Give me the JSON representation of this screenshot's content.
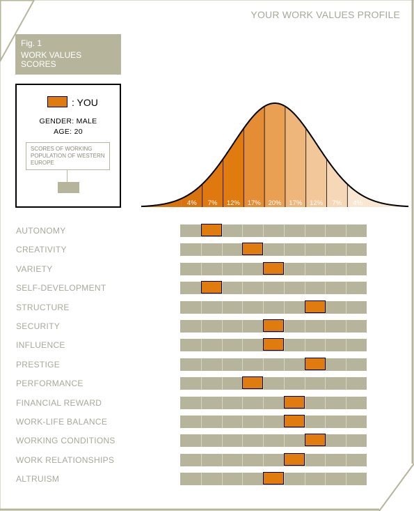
{
  "header": {
    "title": "YOUR WORK VALUES PROFILE"
  },
  "figure": {
    "number": "Fig. 1",
    "title": "WORK VALUES SCORES"
  },
  "legend": {
    "you_label": ": YOU",
    "gender": "GENDER: MALE",
    "age": "AGE: 20",
    "population_label": "SCORES OF WORKING POPULATION OF WESTERN EUROPE"
  },
  "colors": {
    "you": "#e07b10",
    "population": "#b6b59c",
    "label_text": "#a8a89a",
    "frame": "#b6b59c"
  },
  "chart_data": {
    "type": "bar",
    "distribution": {
      "type": "area",
      "segments": [
        "4%",
        "7%",
        "12%",
        "17%",
        "20%",
        "17%",
        "12%",
        "7%",
        "4%"
      ],
      "values": [
        4,
        7,
        12,
        17,
        20,
        17,
        12,
        7,
        4
      ]
    },
    "scale_positions": 9,
    "categories": [
      "AUTONOMY",
      "CREATIVITY",
      "VARIETY",
      "SELF-DEVELOPMENT",
      "STRUCTURE",
      "SECURITY",
      "INFLUENCE",
      "PRESTIGE",
      "PERFORMANCE",
      "FINANCIAL REWARD",
      "WORK-LIFE BALANCE",
      "WORKING CONDITIONS",
      "WORK RELATIONSHIPS",
      "ALTRUISM"
    ],
    "series": [
      {
        "name": "YOU",
        "values": [
          2,
          4,
          5,
          2,
          7,
          5,
          5,
          7,
          4,
          6,
          6,
          7,
          6,
          5
        ]
      }
    ]
  }
}
